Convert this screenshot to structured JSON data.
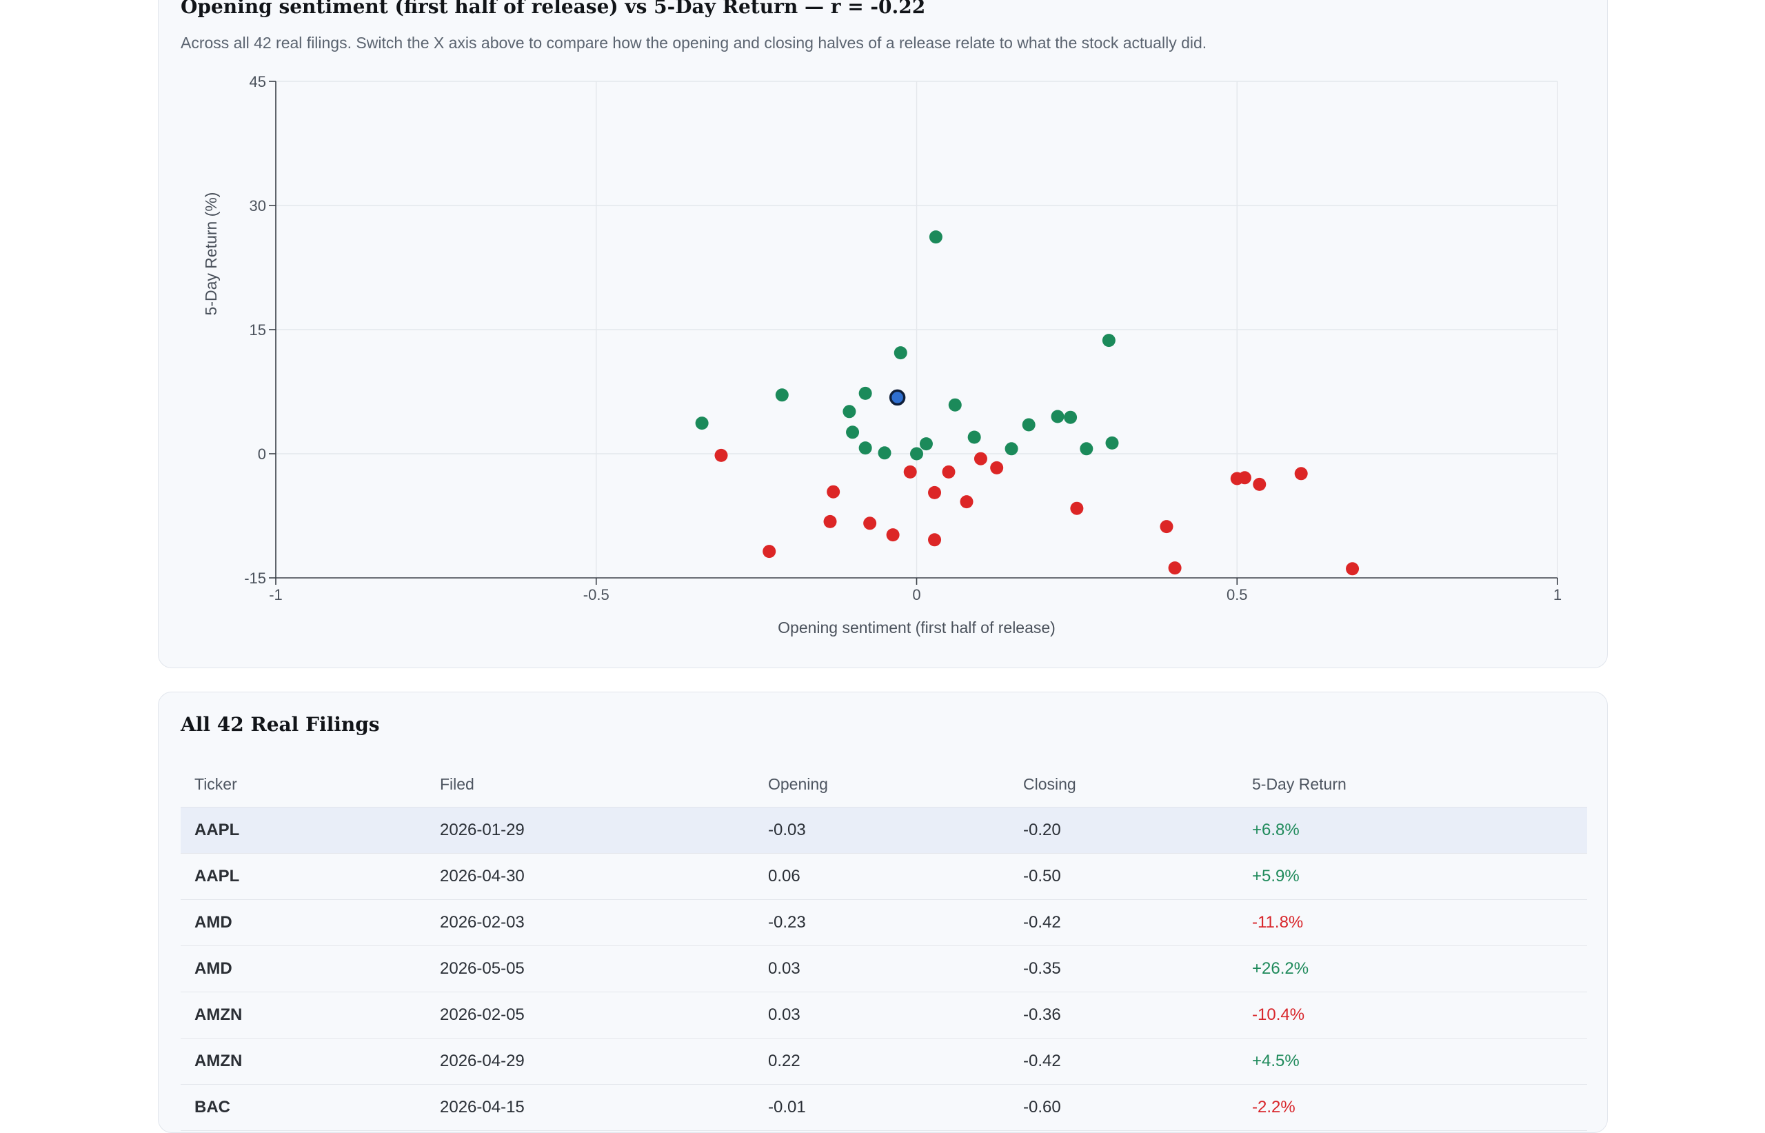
{
  "chart_section": {
    "title": "Opening sentiment (first half of release) vs 5-Day Return — r = -0.22",
    "subtitle": "Across all 42 real filings. Switch the X axis above to compare how the opening and closing halves of a release relate to what the stock actually did."
  },
  "chart_data": {
    "type": "scatter",
    "xlabel": "Opening sentiment (first half of release)",
    "ylabel": "5-Day Return (%)",
    "xlim": [
      -1,
      1
    ],
    "ylim": [
      -15,
      45
    ],
    "x_ticks": [
      -1,
      -0.5,
      0,
      0.5,
      1
    ],
    "y_ticks": [
      -15,
      0,
      15,
      30,
      45
    ],
    "x_tick_labels": [
      "-1",
      "-0.5",
      "0",
      "0.5",
      "1"
    ],
    "y_tick_labels": [
      "-15",
      "0",
      "15",
      "30",
      "45"
    ],
    "grid": true,
    "colors": {
      "positive": "#1b8a5a",
      "negative": "#dc2626",
      "selected_fill": "#2f6fd0",
      "selected_stroke": "#0f1f3a"
    },
    "selected_point": {
      "x": -0.03,
      "y": 6.8
    },
    "points": [
      {
        "x": 0.03,
        "y": 26.2
      },
      {
        "x": 0.3,
        "y": 13.7
      },
      {
        "x": -0.025,
        "y": 12.2
      },
      {
        "x": -0.21,
        "y": 7.1
      },
      {
        "x": -0.08,
        "y": 7.3
      },
      {
        "x": 0.06,
        "y": 5.9
      },
      {
        "x": -0.105,
        "y": 5.1
      },
      {
        "x": -0.335,
        "y": 3.7
      },
      {
        "x": 0.175,
        "y": 3.5
      },
      {
        "x": 0.22,
        "y": 4.5
      },
      {
        "x": 0.24,
        "y": 4.4
      },
      {
        "x": -0.1,
        "y": 2.6
      },
      {
        "x": 0.09,
        "y": 2.0
      },
      {
        "x": 0.015,
        "y": 1.2
      },
      {
        "x": 0.305,
        "y": 1.3
      },
      {
        "x": -0.08,
        "y": 0.7
      },
      {
        "x": -0.05,
        "y": 0.1
      },
      {
        "x": 0.148,
        "y": 0.6
      },
      {
        "x": 0.265,
        "y": 0.6
      },
      {
        "x": -0.305,
        "y": -0.2
      },
      {
        "x": 0.0,
        "y": 0.0
      },
      {
        "x": 0.1,
        "y": -0.6
      },
      {
        "x": -0.01,
        "y": -2.2
      },
      {
        "x": 0.05,
        "y": -2.2
      },
      {
        "x": 0.125,
        "y": -1.7
      },
      {
        "x": -0.13,
        "y": -4.6
      },
      {
        "x": 0.028,
        "y": -4.7
      },
      {
        "x": 0.078,
        "y": -5.8
      },
      {
        "x": 0.25,
        "y": -6.6
      },
      {
        "x": -0.135,
        "y": -8.2
      },
      {
        "x": -0.073,
        "y": -8.4
      },
      {
        "x": -0.037,
        "y": -9.8
      },
      {
        "x": 0.028,
        "y": -10.4
      },
      {
        "x": -0.23,
        "y": -11.8
      },
      {
        "x": 0.39,
        "y": -8.8
      },
      {
        "x": 0.403,
        "y": -13.8
      },
      {
        "x": 0.5,
        "y": -3.0
      },
      {
        "x": 0.512,
        "y": -2.9
      },
      {
        "x": 0.535,
        "y": -3.7
      },
      {
        "x": 0.6,
        "y": -2.4
      },
      {
        "x": 0.68,
        "y": -13.9
      }
    ]
  },
  "table": {
    "title": "All 42 Real Filings",
    "columns": [
      "Ticker",
      "Filed",
      "Opening",
      "Closing",
      "5-Day Return"
    ],
    "rows": [
      {
        "ticker": "AAPL",
        "filed": "2026-01-29",
        "opening": "-0.03",
        "closing": "-0.20",
        "ret": "+6.8%",
        "dir": "pos",
        "selected": true
      },
      {
        "ticker": "AAPL",
        "filed": "2026-04-30",
        "opening": "0.06",
        "closing": "-0.50",
        "ret": "+5.9%",
        "dir": "pos",
        "selected": false
      },
      {
        "ticker": "AMD",
        "filed": "2026-02-03",
        "opening": "-0.23",
        "closing": "-0.42",
        "ret": "-11.8%",
        "dir": "neg",
        "selected": false
      },
      {
        "ticker": "AMD",
        "filed": "2026-05-05",
        "opening": "0.03",
        "closing": "-0.35",
        "ret": "+26.2%",
        "dir": "pos",
        "selected": false
      },
      {
        "ticker": "AMZN",
        "filed": "2026-02-05",
        "opening": "0.03",
        "closing": "-0.36",
        "ret": "-10.4%",
        "dir": "neg",
        "selected": false
      },
      {
        "ticker": "AMZN",
        "filed": "2026-04-29",
        "opening": "0.22",
        "closing": "-0.42",
        "ret": "+4.5%",
        "dir": "pos",
        "selected": false
      },
      {
        "ticker": "BAC",
        "filed": "2026-04-15",
        "opening": "-0.01",
        "closing": "-0.60",
        "ret": "-2.2%",
        "dir": "neg",
        "selected": false
      }
    ]
  }
}
